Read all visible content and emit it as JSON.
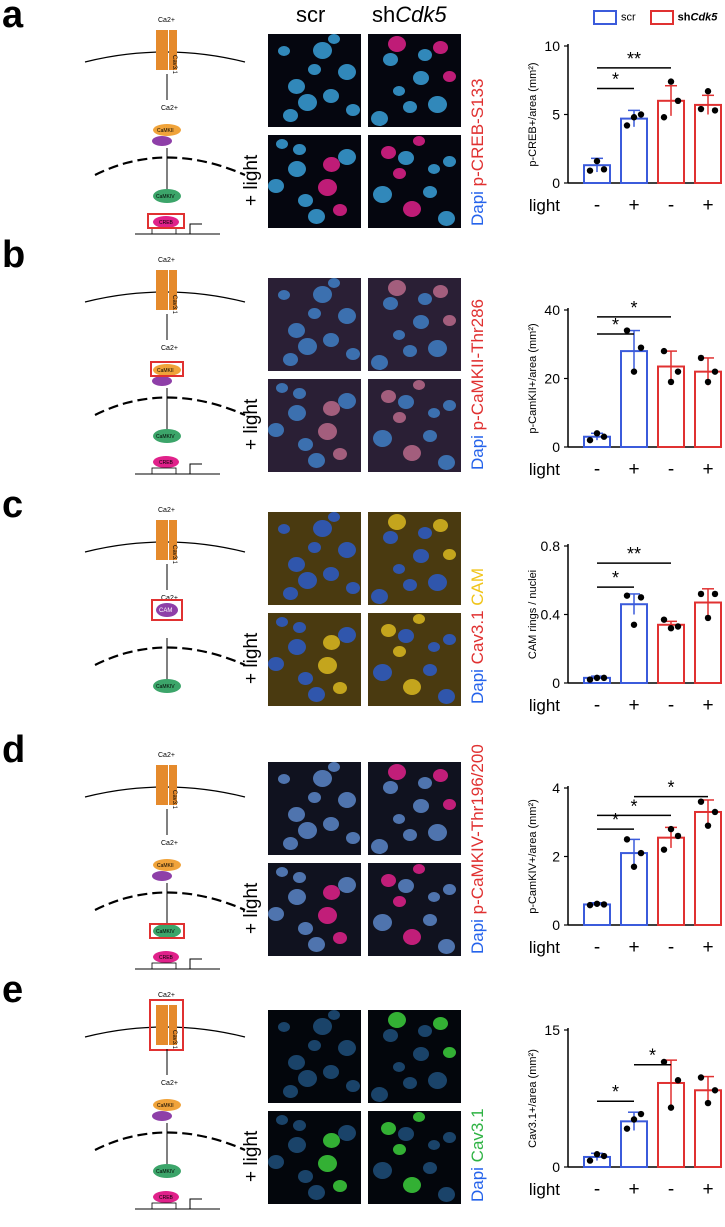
{
  "header": {
    "scr": "scr",
    "sh": "sh",
    "cdk5": "Cdk5"
  },
  "legend": {
    "scr": "scr",
    "sh_prefix": "sh",
    "sh_gene": "Cdk5",
    "colors": {
      "scr": "#3b5bdb",
      "sh": "#e03131"
    }
  },
  "light_axis": {
    "label": "light",
    "ticks": [
      "-",
      "+",
      "-",
      "+"
    ]
  },
  "light_side_label": "+ light",
  "panels": [
    {
      "letter": "a",
      "marker": "p-CREB-S133",
      "marker_color": "#e03131",
      "dapi": "Dapi",
      "ylabel": "p-CREB+/area (mm²)",
      "chart_data": {
        "type": "bar",
        "categories": [
          "scr -",
          "scr +",
          "shCdk5 -",
          "shCdk5 +"
        ],
        "values": [
          1.3,
          4.7,
          6.0,
          5.7
        ],
        "errors": [
          0.5,
          0.6,
          1.1,
          0.7
        ],
        "points": [
          [
            0.9,
            1.6,
            1.0
          ],
          [
            4.2,
            4.8,
            5.0
          ],
          [
            4.8,
            7.4,
            6.0
          ],
          [
            5.4,
            6.7,
            5.3
          ]
        ],
        "ylim": [
          0,
          10
        ],
        "yticks": [
          0,
          5,
          10
        ],
        "signif": [
          {
            "from": 0,
            "to": 1,
            "label": "*",
            "y": 6.9
          },
          {
            "from": 0,
            "to": 2,
            "label": "**",
            "y": 8.4
          }
        ]
      },
      "schematic": {
        "channel": "Cav3.1",
        "steps": [
          "Ca2+",
          "CaMKII",
          "CAM",
          "CaMKIV",
          "CREB",
          "CRE"
        ],
        "highlight": "CREB"
      }
    },
    {
      "letter": "b",
      "marker": "p-CaMKII-Thr286",
      "marker_color": "#e03131",
      "dapi": "Dapi",
      "ylabel": "p-CamKII+/area (mm²)",
      "chart_data": {
        "type": "bar",
        "categories": [
          "scr -",
          "scr +",
          "shCdk5 -",
          "shCdk5 +"
        ],
        "values": [
          3,
          28,
          23.5,
          22
        ],
        "errors": [
          1,
          6,
          4.5,
          4
        ],
        "points": [
          [
            2,
            4,
            3
          ],
          [
            34,
            22,
            29
          ],
          [
            28,
            19,
            22
          ],
          [
            26,
            19,
            22
          ]
        ],
        "ylim": [
          0,
          40
        ],
        "yticks": [
          0,
          20,
          40
        ],
        "signif": [
          {
            "from": 0,
            "to": 1,
            "label": "*",
            "y": 33
          },
          {
            "from": 0,
            "to": 2,
            "label": "*",
            "y": 38
          }
        ]
      },
      "schematic": {
        "channel": "Cav3.1",
        "steps": [
          "Ca2+",
          "CaMKII",
          "CAM",
          "CaMKIV",
          "CREB",
          "CRE"
        ],
        "highlight": "CaMKII"
      }
    },
    {
      "letter": "c",
      "marker": "CAM",
      "marker2": "Cav3.1",
      "marker_color": "#f0c419",
      "marker2_color": "#e03131",
      "dapi": "Dapi",
      "ylabel": "CAM rings / nuclei",
      "chart_data": {
        "type": "bar",
        "categories": [
          "scr -",
          "scr +",
          "shCdk5 -",
          "shCdk5 +"
        ],
        "values": [
          0.03,
          0.46,
          0.34,
          0.47
        ],
        "errors": [
          0.01,
          0.06,
          0.02,
          0.08
        ],
        "points": [
          [
            0.02,
            0.03,
            0.03
          ],
          [
            0.51,
            0.34,
            0.5
          ],
          [
            0.37,
            0.32,
            0.33
          ],
          [
            0.52,
            0.38,
            0.52
          ]
        ],
        "ylim": [
          0,
          0.8
        ],
        "yticks": [
          0.0,
          0.4,
          0.8
        ],
        "signif": [
          {
            "from": 0,
            "to": 1,
            "label": "*",
            "y": 0.56
          },
          {
            "from": 0,
            "to": 2,
            "label": "**",
            "y": 0.7
          }
        ]
      },
      "schematic": {
        "channel": "Cav3.1",
        "steps": [
          "Ca2+",
          "CAM",
          "CaMKIV"
        ],
        "highlight": "CAM"
      }
    },
    {
      "letter": "d",
      "marker": "p-CaMKIV-Thr196/200",
      "marker_color": "#e03131",
      "dapi": "Dapi",
      "ylabel": "p-CamKIV+/area (mm²)",
      "chart_data": {
        "type": "bar",
        "categories": [
          "scr -",
          "scr +",
          "shCdk5 -",
          "shCdk5 +"
        ],
        "values": [
          0.6,
          2.1,
          2.55,
          3.3
        ],
        "errors": [
          0.05,
          0.4,
          0.3,
          0.35
        ],
        "points": [
          [
            0.58,
            0.62,
            0.6
          ],
          [
            2.5,
            1.7,
            2.1
          ],
          [
            2.2,
            2.8,
            2.6
          ],
          [
            3.6,
            2.9,
            3.3
          ]
        ],
        "ylim": [
          0,
          4
        ],
        "yticks": [
          0,
          2,
          4
        ],
        "signif": [
          {
            "from": 0,
            "to": 1,
            "label": "*",
            "y": 2.8
          },
          {
            "from": 0,
            "to": 2,
            "label": "*",
            "y": 3.2
          },
          {
            "from": 1,
            "to": 3,
            "label": "*",
            "y": 3.75
          }
        ]
      },
      "schematic": {
        "channel": "Cav3.1",
        "steps": [
          "Ca2+",
          "CaMKII",
          "CAM",
          "CaMKIV",
          "CREB",
          "CRE"
        ],
        "highlight": "CaMKIV"
      }
    },
    {
      "letter": "e",
      "marker": "Cav3.1",
      "marker_color": "#2fb344",
      "dapi": "Dapi",
      "ylabel": "Cav3.1+/area (mm²)",
      "chart_data": {
        "type": "bar",
        "categories": [
          "scr -",
          "scr +",
          "shCdk5 -",
          "shCdk5 +"
        ],
        "values": [
          1.1,
          5.0,
          9.2,
          8.4
        ],
        "errors": [
          0.4,
          1.0,
          2.5,
          1.5
        ],
        "points": [
          [
            0.7,
            1.4,
            1.2
          ],
          [
            4.2,
            5.2,
            5.8
          ],
          [
            11.5,
            6.5,
            9.5
          ],
          [
            9.8,
            7.0,
            8.4
          ]
        ],
        "ylim": [
          0,
          15
        ],
        "yticks": [
          0,
          15
        ],
        "signif": [
          {
            "from": 0,
            "to": 1,
            "label": "*",
            "y": 7.2
          },
          {
            "from": 1,
            "to": 2,
            "label": "*",
            "y": 11.2
          }
        ]
      },
      "schematic": {
        "channel": "Cav3.1",
        "steps": [
          "Ca2+",
          "CaMKII",
          "CAM",
          "CaMKIV",
          "CREB",
          "CRE"
        ],
        "highlight": "channel"
      }
    }
  ]
}
